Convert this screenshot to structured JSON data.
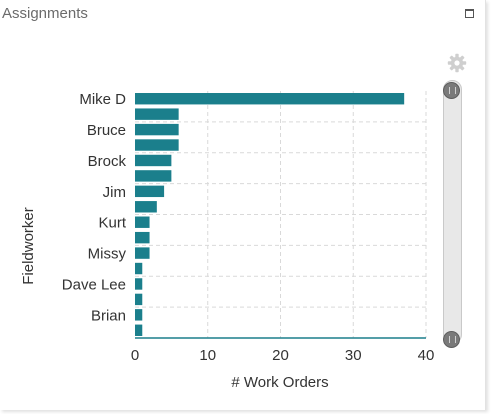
{
  "panel": {
    "title": "Assignments"
  },
  "colors": {
    "bar": "#1b7f8c",
    "grid": "#d9d9d9",
    "axis": "#1b7f8c"
  },
  "icons": {
    "maximize": "maximize-icon",
    "settings": "gear-icon",
    "range_handle": "range-handle-icon"
  },
  "chart_data": {
    "type": "bar",
    "orientation": "horizontal",
    "title": "",
    "xlabel": "# Work Orders",
    "ylabel": "Fieldworker",
    "xlim": [
      0,
      40
    ],
    "xticks": [
      0,
      10,
      20,
      30,
      40
    ],
    "grid": true,
    "categories": [
      "Mike D",
      "",
      "Bruce",
      "",
      "Brock",
      "",
      "Jim",
      "",
      "Kurt",
      "",
      "Missy",
      "",
      "Dave Lee",
      "",
      "Brian",
      ""
    ],
    "values": [
      37,
      6,
      6,
      6,
      5,
      5,
      4,
      3,
      2,
      2,
      2,
      1,
      1,
      1,
      1,
      1
    ]
  }
}
